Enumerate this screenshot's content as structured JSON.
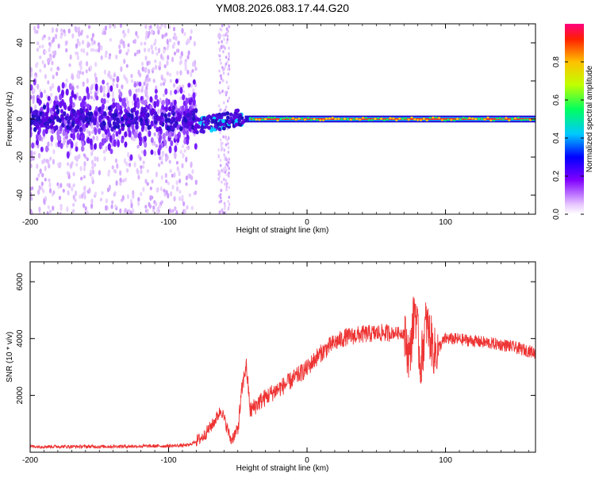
{
  "page_title": "YM08.2026.083.17.44.G20",
  "chart_data": [
    {
      "type": "heatmap",
      "name": "spectrogram",
      "xlabel": "Height of straight line (km)",
      "ylabel": "Frequency (Hz)",
      "xlim": [
        -200,
        165
      ],
      "ylim": [
        -50,
        50
      ],
      "xticks": [
        -200,
        -100,
        0,
        100
      ],
      "yticks": [
        -40,
        -20,
        0,
        20,
        40
      ],
      "noise_region_x": [
        -200,
        -80
      ],
      "transition_x": [
        -80,
        -45
      ],
      "carrier_x": [
        -45,
        165
      ],
      "carrier_frequency_hz": 0,
      "colorbar": {
        "label": "Normalized spectral amplitude",
        "range": [
          0.0,
          1.0
        ],
        "ticks": [
          0.0,
          0.2,
          0.4,
          0.6,
          0.8
        ],
        "tick_labels": [
          "0.0",
          "0.2",
          "0.4",
          "0.6",
          "0.8"
        ]
      }
    },
    {
      "type": "line",
      "name": "snr",
      "xlabel": "Height of straight line (km)",
      "ylabel": "SNR (10 * v/v)",
      "xlim": [
        -200,
        165
      ],
      "ylim": [
        0,
        6700
      ],
      "xticks": [
        -200,
        -100,
        0,
        100
      ],
      "yticks": [
        2000,
        4000,
        6000
      ],
      "color": "#ee3333",
      "series": [
        {
          "name": "SNR",
          "x": [
            -200,
            -150,
            -100,
            -85,
            -75,
            -68,
            -62,
            -58,
            -55,
            -50,
            -47,
            -44,
            -41,
            -35,
            -25,
            -15,
            -8,
            0,
            8,
            18,
            28,
            40,
            55,
            70,
            74,
            78,
            82,
            86,
            92,
            100,
            115,
            130,
            145,
            165
          ],
          "y": [
            200,
            200,
            220,
            250,
            550,
            1000,
            1500,
            900,
            420,
            800,
            2200,
            3100,
            1450,
            1750,
            2100,
            2400,
            2650,
            2950,
            3400,
            3800,
            4050,
            4150,
            4200,
            4200,
            3300,
            5200,
            3000,
            4600,
            3500,
            4000,
            3950,
            3850,
            3750,
            3500
          ]
        }
      ]
    }
  ]
}
